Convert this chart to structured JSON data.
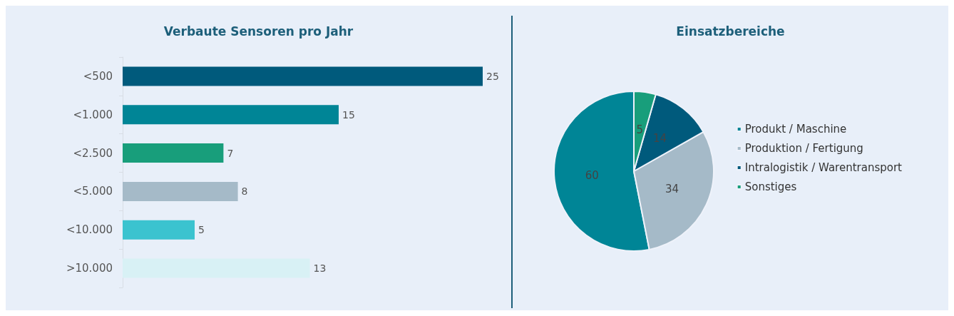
{
  "chart_data": [
    {
      "type": "bar",
      "title": "Verbaute Sensoren pro Jahr",
      "orientation": "horizontal",
      "categories": [
        "<500",
        "<1.000",
        "<2.500",
        "<5.000",
        "<10.000",
        ">10.000"
      ],
      "values": [
        25,
        15,
        7,
        8,
        5,
        13
      ],
      "colors": [
        "#005a7c",
        "#008596",
        "#189e7b",
        "#a5bac8",
        "#3bc3cf",
        "#d8f1f5"
      ],
      "data_labels": true
    },
    {
      "type": "pie",
      "title": "Einsatzbereiche",
      "categories": [
        "Produkt / Maschine",
        "Produktion / Fertigung",
        "Intralogistik / Warentransport",
        "Sonstiges"
      ],
      "values": [
        60,
        34,
        14,
        5
      ],
      "colors": [
        "#008596",
        "#a5bac8",
        "#005a7c",
        "#189e7b"
      ],
      "data_labels": true,
      "legend": "right"
    }
  ]
}
